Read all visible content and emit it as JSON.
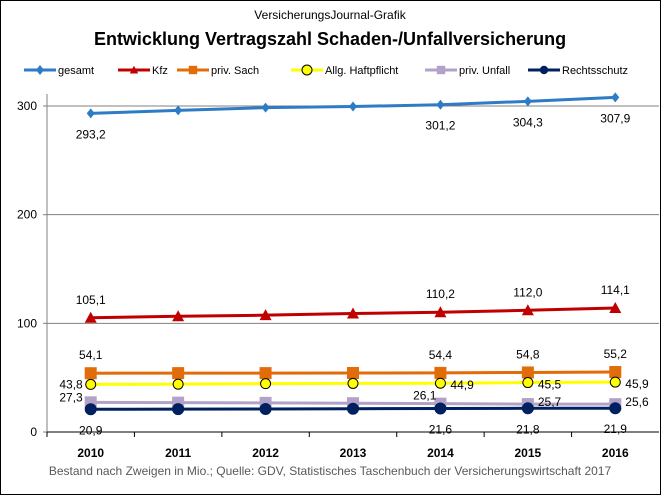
{
  "chart_data": {
    "type": "line",
    "subtitle": "VersicherungsJournal-Grafik",
    "title": "Entwicklung Vertragszahl Schaden-/Unfallversicherung",
    "source": "Bestand nach Zweigen in Mio.; Quelle: GDV, Statistisches Taschenbuch der Versicherungswirtschaft 2017",
    "categories": [
      "2010",
      "2011",
      "2012",
      "2013",
      "2014",
      "2015",
      "2016"
    ],
    "ylim": [
      0,
      300
    ],
    "yticks": [
      "0",
      "100",
      "200",
      "300"
    ],
    "ytick_values": [
      0,
      100,
      200,
      300
    ],
    "grid": true,
    "legend_position": "top",
    "series": [
      {
        "name": "gesamt",
        "color": "#2E7CC6",
        "marker": "diamond",
        "values": [
          293.2,
          296.0,
          298.5,
          299.5,
          301.2,
          304.3,
          307.9
        ],
        "labels": [
          "293,2",
          null,
          null,
          null,
          "301,2",
          "304,3",
          "307,9"
        ],
        "label_pos": "below"
      },
      {
        "name": "Kfz",
        "color": "#C00000",
        "marker": "triangle",
        "values": [
          105.1,
          106.5,
          107.5,
          109.0,
          110.2,
          112.0,
          114.1
        ],
        "labels": [
          "105,1",
          null,
          null,
          null,
          "110,2",
          "112,0",
          "114,1"
        ],
        "label_pos": "above"
      },
      {
        "name": "priv. Sach",
        "color": "#E36C0A",
        "marker": "square",
        "values": [
          54.1,
          54.2,
          54.2,
          54.3,
          54.4,
          54.8,
          55.2
        ],
        "labels": [
          "54,1",
          null,
          null,
          null,
          "54,4",
          "54,8",
          "55,2"
        ],
        "label_pos": "above"
      },
      {
        "name": "Allg. Haftpflicht",
        "color": "#FFFF00",
        "marker": "circle-open",
        "values": [
          43.8,
          44.0,
          44.5,
          44.7,
          44.9,
          45.5,
          45.9
        ],
        "labels": [
          "43,8",
          null,
          null,
          null,
          "44,9",
          "45,5",
          "45,9"
        ],
        "label_pos": "right"
      },
      {
        "name": "priv. Unfall",
        "color": "#B3A2C7",
        "marker": "square",
        "values": [
          27.3,
          27.0,
          26.8,
          26.5,
          26.1,
          25.7,
          25.6
        ],
        "labels": [
          "27,3",
          null,
          null,
          null,
          "26,1",
          "25,7",
          "25,6"
        ],
        "label_pos": "right"
      },
      {
        "name": "Rechtsschutz",
        "color": "#002060",
        "marker": "circle",
        "values": [
          20.9,
          21.0,
          21.2,
          21.4,
          21.6,
          21.8,
          21.9
        ],
        "labels": [
          "20,9",
          null,
          null,
          null,
          "21,6",
          "21,8",
          "21,9"
        ],
        "label_pos": "below"
      }
    ]
  }
}
